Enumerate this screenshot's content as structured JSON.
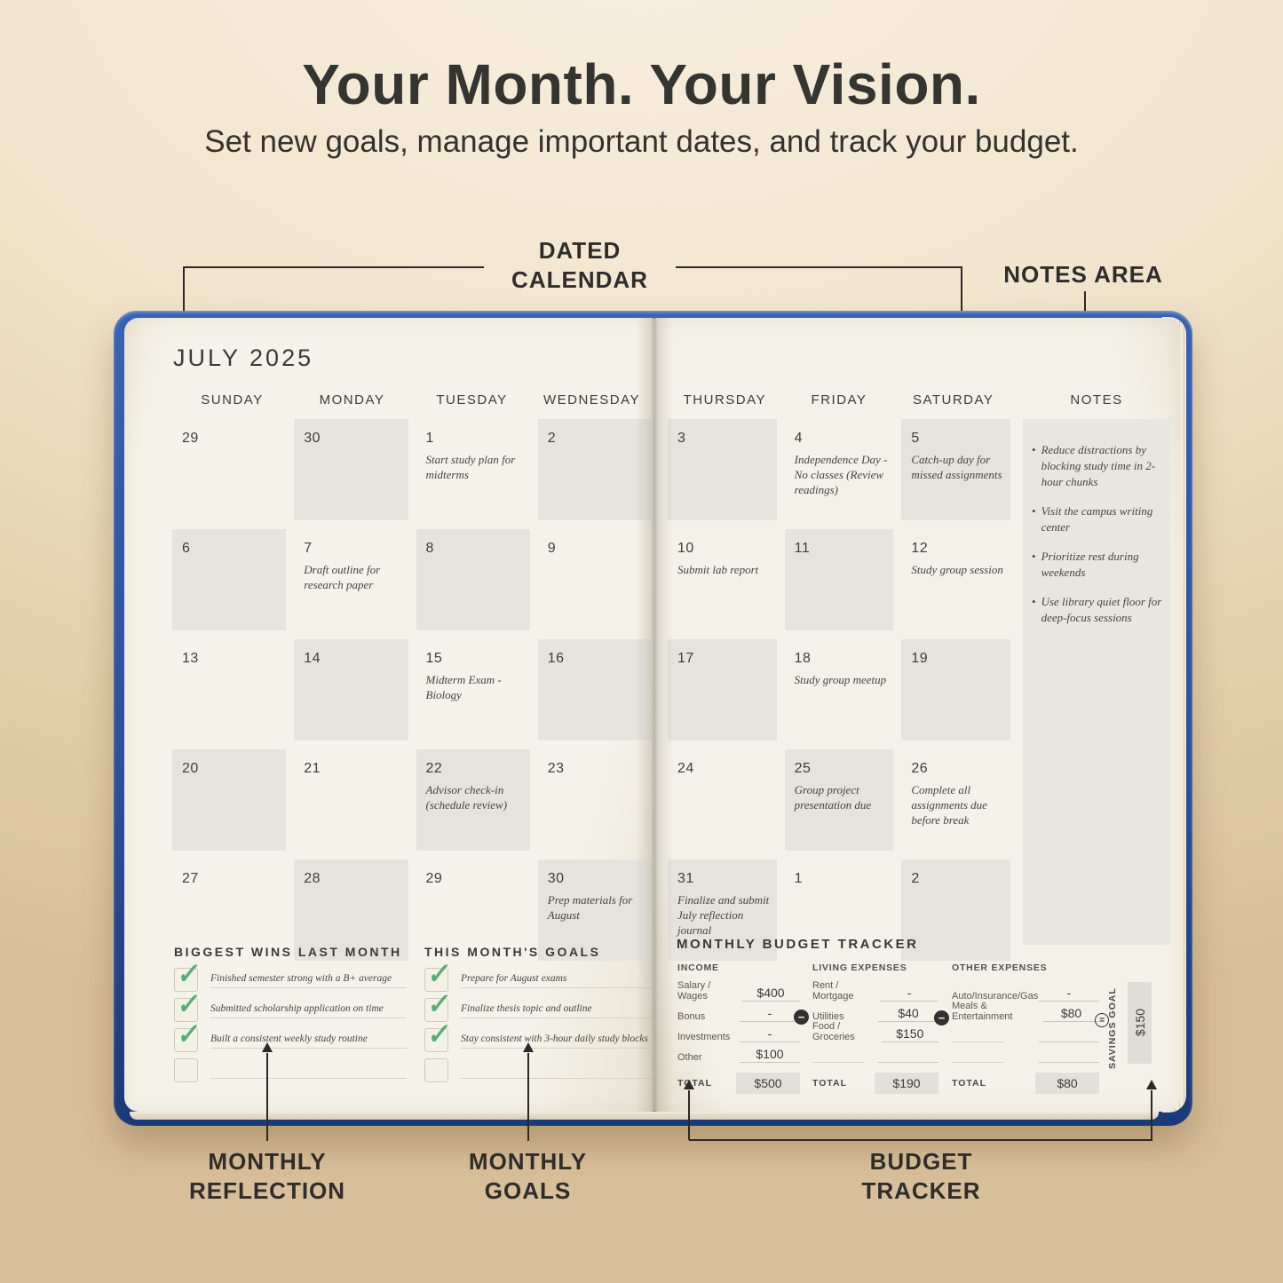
{
  "header": {
    "title": "Your Month. Your Vision.",
    "subtitle": "Set new goals, manage important dates, and track your budget."
  },
  "annotations": {
    "dated_calendar": "DATED CALENDAR",
    "notes_area": "NOTES AREA",
    "monthly_reflection": "MONTHLY REFLECTION",
    "monthly_goals": "MONTHLY GOALS",
    "budget_tracker": "BUDGET TRACKER"
  },
  "icons": {
    "check": "✓",
    "minus": "−",
    "equals": "=",
    "bullet": "•"
  },
  "colors": {
    "cover_blue": "#2b509d",
    "page_cream": "#f4f1e8",
    "cell_shade": "#e4e3dc",
    "check_green": "#54ad73",
    "ink": "#2e2d2a"
  },
  "planner": {
    "month_title": "JULY 2025",
    "day_headers_left": [
      "SUNDAY",
      "MONDAY",
      "TUESDAY",
      "WEDNESDAY"
    ],
    "day_headers_right": [
      "THURSDAY",
      "FRIDAY",
      "SATURDAY"
    ],
    "notes_header": "NOTES",
    "weeks": [
      {
        "left": [
          {
            "day": "29",
            "note": "",
            "shaded": false
          },
          {
            "day": "30",
            "note": "",
            "shaded": true
          },
          {
            "day": "1",
            "note": "Start study plan for midterms",
            "shaded": false
          },
          {
            "day": "2",
            "note": "",
            "shaded": true
          }
        ],
        "right": [
          {
            "day": "3",
            "note": "",
            "shaded": true
          },
          {
            "day": "4",
            "note": "Independence Day - No classes (Review readings)",
            "shaded": false
          },
          {
            "day": "5",
            "note": "Catch-up day for missed assignments",
            "shaded": true
          }
        ]
      },
      {
        "left": [
          {
            "day": "6",
            "note": "",
            "shaded": true
          },
          {
            "day": "7",
            "note": "Draft outline for research paper",
            "shaded": false
          },
          {
            "day": "8",
            "note": "",
            "shaded": true
          },
          {
            "day": "9",
            "note": "",
            "shaded": false
          }
        ],
        "right": [
          {
            "day": "10",
            "note": "Submit lab report",
            "shaded": false
          },
          {
            "day": "11",
            "note": "",
            "shaded": true
          },
          {
            "day": "12",
            "note": "Study group session",
            "shaded": false
          }
        ]
      },
      {
        "left": [
          {
            "day": "13",
            "note": "",
            "shaded": false
          },
          {
            "day": "14",
            "note": "",
            "shaded": true
          },
          {
            "day": "15",
            "note": "Midterm Exam - Biology",
            "shaded": false
          },
          {
            "day": "16",
            "note": "",
            "shaded": true
          }
        ],
        "right": [
          {
            "day": "17",
            "note": "",
            "shaded": true
          },
          {
            "day": "18",
            "note": "Study group meetup",
            "shaded": false
          },
          {
            "day": "19",
            "note": "",
            "shaded": true
          }
        ]
      },
      {
        "left": [
          {
            "day": "20",
            "note": "",
            "shaded": true
          },
          {
            "day": "21",
            "note": "",
            "shaded": false
          },
          {
            "day": "22",
            "note": "Advisor check-in (schedule review)",
            "shaded": true
          },
          {
            "day": "23",
            "note": "",
            "shaded": false
          }
        ],
        "right": [
          {
            "day": "24",
            "note": "",
            "shaded": false
          },
          {
            "day": "25",
            "note": "Group project presentation due",
            "shaded": true
          },
          {
            "day": "26",
            "note": "Complete all assignments due before break",
            "shaded": false
          }
        ]
      },
      {
        "left": [
          {
            "day": "27",
            "note": "",
            "shaded": false
          },
          {
            "day": "28",
            "note": "",
            "shaded": true
          },
          {
            "day": "29",
            "note": "",
            "shaded": false
          },
          {
            "day": "30",
            "note": "Prep materials for August",
            "shaded": true
          }
        ],
        "right": [
          {
            "day": "31",
            "note": "Finalize and submit July reflection journal",
            "shaded": true
          },
          {
            "day": "1",
            "note": "",
            "shaded": false
          },
          {
            "day": "2",
            "note": "",
            "shaded": true
          }
        ]
      }
    ],
    "notes": [
      "Reduce distractions by blocking study time in 2-hour chunks",
      "Visit the campus writing center",
      "Prioritize rest during weekends",
      "Use library quiet floor for deep-focus sessions"
    ],
    "reflection": {
      "title": "BIGGEST WINS LAST MONTH",
      "items": [
        {
          "text": "Finished semester strong with a B+ average",
          "checked": true
        },
        {
          "text": "Submitted scholarship application on time",
          "checked": true
        },
        {
          "text": "Built a consistent weekly study routine",
          "checked": true
        },
        {
          "text": "",
          "checked": false
        }
      ]
    },
    "goals": {
      "title": "THIS MONTH'S GOALS",
      "items": [
        {
          "text": "Prepare for August exams",
          "checked": true
        },
        {
          "text": "Finalize thesis topic and outline",
          "checked": true
        },
        {
          "text": "Stay consistent with 3-hour daily study blocks",
          "checked": true
        },
        {
          "text": "",
          "checked": false
        }
      ]
    },
    "budget": {
      "title": "MONTHLY BUDGET TRACKER",
      "columns": [
        {
          "header": "INCOME",
          "rows": [
            [
              "Salary / Wages",
              "$400"
            ],
            [
              "Bonus",
              "-"
            ],
            [
              "Investments",
              "-"
            ],
            [
              "Other",
              "$100"
            ]
          ],
          "total_label": "TOTAL",
          "total": "$500"
        },
        {
          "header": "LIVING EXPENSES",
          "rows": [
            [
              "Rent / Mortgage",
              "-"
            ],
            [
              "Utilities",
              "$40"
            ],
            [
              "Food / Groceries",
              "$150"
            ],
            [
              "",
              ""
            ]
          ],
          "total_label": "TOTAL",
          "total": "$190"
        },
        {
          "header": "OTHER EXPENSES",
          "rows": [
            [
              "Auto/Insurance/Gas",
              "-"
            ],
            [
              "Meals & Entertainment",
              "$80"
            ],
            [
              "",
              ""
            ],
            [
              "",
              ""
            ]
          ],
          "total_label": "TOTAL",
          "total": "$80"
        }
      ],
      "savings": {
        "label": "SAVINGS GOAL",
        "value": "$150"
      }
    }
  }
}
